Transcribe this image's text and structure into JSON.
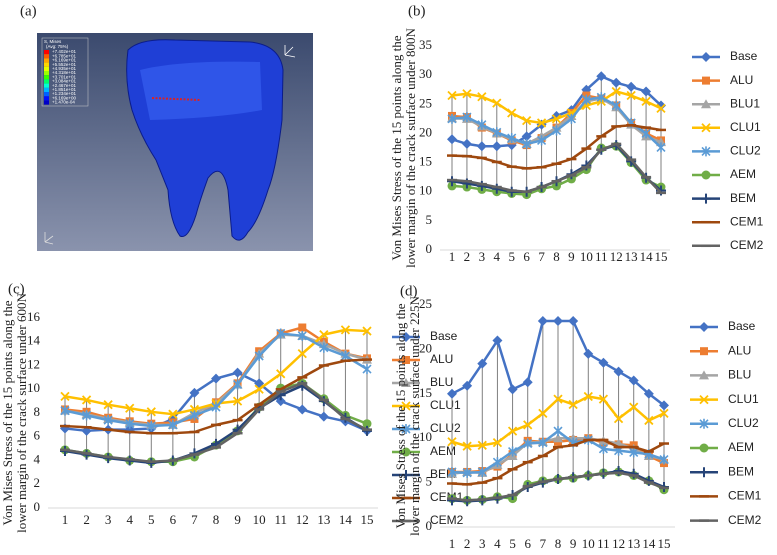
{
  "figure_a": {
    "panel_label": "(a)",
    "contour_title": "S, Mises",
    "contour_subtitle": "(Avg: 75%)",
    "levels": [
      "+7.402e+01",
      "+6.785e+01",
      "+6.169e+01",
      "+5.552e+01",
      "+4.935e+01",
      "+4.318e+01",
      "+3.701e+01",
      "+3.084e+01",
      "+2.467e+01",
      "+1.851e+01",
      "+1.234e+01",
      "+6.169e+00",
      "+1.470e-04"
    ]
  },
  "chart_data": [
    {
      "type": "line",
      "panel_label": "(b)",
      "ylabel": [
        "Von Mises Stress of the 15 points along the",
        "lower margin of the crack surface under 800N"
      ],
      "categories": [
        "1",
        "2",
        "3",
        "4",
        "5",
        "6",
        "7",
        "8",
        "9",
        "10",
        "11",
        "12",
        "13",
        "14",
        "15"
      ],
      "ylim": [
        0,
        35
      ],
      "yticks": [
        0,
        5,
        10,
        15,
        20,
        25,
        30,
        35
      ],
      "grid": false,
      "legend": "right",
      "series": [
        {
          "name": "Base",
          "color": "#4472c4",
          "marker": "diamond",
          "values": [
            19.0,
            18.2,
            17.8,
            17.8,
            18.0,
            19.5,
            21.5,
            23.0,
            24.0,
            27.5,
            29.8,
            28.7,
            28.0,
            27.2,
            24.8
          ]
        },
        {
          "name": "ALU",
          "color": "#ed7d31",
          "marker": "square",
          "values": [
            23.0,
            22.8,
            21.0,
            20.0,
            18.8,
            18.0,
            19.2,
            21.0,
            23.5,
            26.5,
            26.0,
            24.8,
            21.8,
            20.0,
            18.8
          ]
        },
        {
          "name": "BLU1",
          "color": "#a5a5a5",
          "marker": "triangle",
          "values": [
            22.6,
            22.5,
            21.2,
            20.0,
            19.0,
            18.2,
            19.5,
            21.0,
            23.0,
            25.5,
            26.0,
            24.5,
            21.5,
            19.5,
            18.5
          ]
        },
        {
          "name": "CLU1",
          "color": "#ffc000",
          "marker": "x",
          "values": [
            26.5,
            26.8,
            26.3,
            25.2,
            23.5,
            22.2,
            21.8,
            22.5,
            23.5,
            24.8,
            25.5,
            27.2,
            26.5,
            25.5,
            24.3
          ]
        },
        {
          "name": "CLU2",
          "color": "#5b9bd5",
          "marker": "star",
          "values": [
            22.5,
            22.8,
            21.5,
            20.2,
            19.2,
            18.2,
            18.8,
            20.5,
            22.5,
            25.8,
            26.2,
            24.8,
            21.8,
            20.0,
            17.6
          ]
        },
        {
          "name": "AEM",
          "color": "#70ad47",
          "marker": "circle",
          "values": [
            11.0,
            10.8,
            10.4,
            10.0,
            9.7,
            9.5,
            10.5,
            11.0,
            12.2,
            13.8,
            17.5,
            17.8,
            15.0,
            12.0,
            10.8
          ]
        },
        {
          "name": "BEM",
          "color": "#264478",
          "marker": "plus",
          "values": [
            11.8,
            11.4,
            11.0,
            10.5,
            10.0,
            10.0,
            10.8,
            11.8,
            13.0,
            14.5,
            17.2,
            18.0,
            15.2,
            12.4,
            10.2
          ]
        },
        {
          "name": "CEM1",
          "color": "#9e480e",
          "marker": "dash",
          "values": [
            16.2,
            16.1,
            15.8,
            15.1,
            14.3,
            14.0,
            14.2,
            14.8,
            15.6,
            17.4,
            19.5,
            21.2,
            21.4,
            21.0,
            20.6
          ]
        },
        {
          "name": "CEM2",
          "color": "#636363",
          "marker": "dash",
          "values": [
            12.0,
            11.8,
            11.3,
            10.8,
            10.2,
            10.0,
            10.8,
            11.8,
            12.8,
            14.2,
            17.2,
            18.2,
            15.5,
            12.5,
            9.8
          ]
        }
      ]
    },
    {
      "type": "line",
      "panel_label": "(c)",
      "ylabel": [
        "Von Mises Stress of the 15 points along the",
        "lower margin of the crack surface under 600N"
      ],
      "categories": [
        "1",
        "2",
        "3",
        "4",
        "5",
        "6",
        "7",
        "8",
        "9",
        "10",
        "11",
        "12",
        "13",
        "14",
        "15"
      ],
      "ylim": [
        0,
        16
      ],
      "yticks": [
        0,
        2,
        4,
        6,
        8,
        10,
        12,
        14,
        16
      ],
      "grid": false,
      "legend": "right",
      "series": [
        {
          "name": "Base",
          "color": "#4472c4",
          "marker": "diamond",
          "values": [
            6.7,
            6.5,
            6.6,
            6.6,
            6.7,
            7.5,
            9.7,
            10.9,
            11.4,
            10.5,
            9.0,
            8.3,
            7.7,
            7.3,
            6.5
          ]
        },
        {
          "name": "ALU",
          "color": "#ed7d31",
          "marker": "square",
          "values": [
            8.3,
            8.1,
            7.6,
            7.3,
            7.1,
            7.2,
            7.5,
            8.9,
            10.5,
            13.2,
            14.7,
            15.2,
            14.0,
            13.0,
            12.6
          ]
        },
        {
          "name": "BLU",
          "color": "#a5a5a5",
          "marker": "triangle",
          "values": [
            8.2,
            7.9,
            7.5,
            7.2,
            7.0,
            7.0,
            8.0,
            8.8,
            10.4,
            13.0,
            14.6,
            14.5,
            13.8,
            13.0,
            12.5
          ]
        },
        {
          "name": "CLU1",
          "color": "#ffc000",
          "marker": "x",
          "values": [
            9.4,
            9.1,
            8.7,
            8.4,
            8.1,
            7.9,
            8.3,
            8.8,
            9.0,
            10.0,
            11.3,
            13.0,
            14.6,
            15.0,
            14.9
          ]
        },
        {
          "name": "CLU2",
          "color": "#5b9bd5",
          "marker": "star",
          "values": [
            8.2,
            7.8,
            7.4,
            7.1,
            6.9,
            7.0,
            7.8,
            8.5,
            10.4,
            12.8,
            14.7,
            14.5,
            13.5,
            12.8,
            11.7
          ]
        },
        {
          "name": "AEM",
          "color": "#70ad47",
          "marker": "circle",
          "values": [
            4.9,
            4.6,
            4.3,
            4.0,
            3.9,
            3.9,
            4.3,
            5.3,
            6.5,
            8.5,
            10.1,
            10.5,
            9.2,
            7.8,
            7.1
          ]
        },
        {
          "name": "BEM",
          "color": "#264478",
          "marker": "plus",
          "values": [
            4.8,
            4.5,
            4.2,
            4.0,
            3.8,
            4.0,
            4.6,
            5.4,
            6.6,
            8.4,
            9.5,
            10.3,
            9.0,
            7.6,
            6.5
          ]
        },
        {
          "name": "CEM1",
          "color": "#9e480e",
          "marker": "dash",
          "values": [
            6.9,
            6.8,
            6.6,
            6.4,
            6.3,
            6.3,
            6.4,
            7.0,
            7.4,
            8.7,
            10.0,
            11.0,
            12.0,
            12.4,
            12.5
          ]
        },
        {
          "name": "CEM2",
          "color": "#636363",
          "marker": "dash",
          "values": [
            4.9,
            4.6,
            4.3,
            4.1,
            3.9,
            4.0,
            4.5,
            5.1,
            6.3,
            8.3,
            9.8,
            10.5,
            9.1,
            7.5,
            6.6
          ]
        }
      ]
    },
    {
      "type": "line",
      "panel_label": "(d)",
      "ylabel": [
        "Von Mises Stress of the 15 points along the",
        "lower margin of the crack surface under 225N"
      ],
      "categories": [
        "1",
        "2",
        "3",
        "4",
        "5",
        "6",
        "7",
        "8",
        "9",
        "10",
        "11",
        "12",
        "13",
        "14",
        "15"
      ],
      "ylim": [
        0,
        25
      ],
      "yticks": [
        0,
        5,
        10,
        15,
        20,
        25
      ],
      "grid": false,
      "legend": "right",
      "series": [
        {
          "name": "Base",
          "color": "#4472c4",
          "marker": "diamond",
          "values": [
            15.0,
            15.9,
            18.4,
            21.0,
            15.5,
            16.3,
            23.2,
            23.2,
            23.2,
            19.5,
            18.5,
            17.5,
            16.5,
            15.0,
            13.7
          ]
        },
        {
          "name": "ALU",
          "color": "#ed7d31",
          "marker": "square",
          "values": [
            6.2,
            6.2,
            6.3,
            6.8,
            8.2,
            9.7,
            9.6,
            9.6,
            9.8,
            10.0,
            9.5,
            9.3,
            9.2,
            8.0,
            7.2
          ]
        },
        {
          "name": "BLU",
          "color": "#a5a5a5",
          "marker": "triangle",
          "values": [
            6.0,
            6.2,
            6.1,
            7.0,
            8.0,
            9.5,
            9.6,
            10.0,
            10.0,
            10.0,
            9.7,
            9.4,
            8.8,
            8.0,
            7.6
          ]
        },
        {
          "name": "CLU1",
          "color": "#ffc000",
          "marker": "x",
          "values": [
            9.6,
            9.1,
            9.2,
            9.5,
            10.8,
            11.5,
            12.8,
            14.4,
            13.8,
            14.7,
            14.4,
            12.2,
            13.5,
            12.0,
            12.8
          ]
        },
        {
          "name": "CLU2",
          "color": "#5b9bd5",
          "marker": "star",
          "values": [
            6.2,
            6.1,
            6.2,
            7.3,
            8.5,
            9.4,
            9.5,
            10.8,
            9.5,
            9.8,
            8.8,
            8.6,
            8.4,
            8.2,
            7.6
          ]
        },
        {
          "name": "AEM",
          "color": "#70ad47",
          "marker": "circle",
          "values": [
            3.2,
            3.0,
            3.1,
            3.4,
            3.2,
            4.8,
            5.2,
            5.4,
            5.5,
            5.8,
            6.1,
            6.2,
            5.8,
            5.2,
            4.2
          ]
        },
        {
          "name": "BEM",
          "color": "#264478",
          "marker": "plus",
          "values": [
            3.0,
            2.9,
            3.0,
            3.2,
            3.6,
            4.5,
            5.0,
            5.4,
            5.6,
            5.8,
            6.0,
            6.3,
            6.0,
            5.2,
            4.5
          ]
        },
        {
          "name": "CEM1",
          "color": "#9e480e",
          "marker": "dash",
          "values": [
            4.9,
            4.8,
            5.0,
            5.5,
            6.5,
            7.3,
            8.0,
            9.0,
            9.2,
            9.8,
            9.8,
            9.0,
            9.0,
            8.5,
            9.4
          ]
        },
        {
          "name": "CEM2",
          "color": "#636363",
          "marker": "dash",
          "values": [
            3.2,
            3.0,
            3.1,
            3.3,
            3.6,
            4.6,
            5.1,
            5.4,
            5.6,
            5.8,
            6.0,
            6.1,
            5.8,
            5.0,
            4.4
          ]
        }
      ]
    }
  ]
}
